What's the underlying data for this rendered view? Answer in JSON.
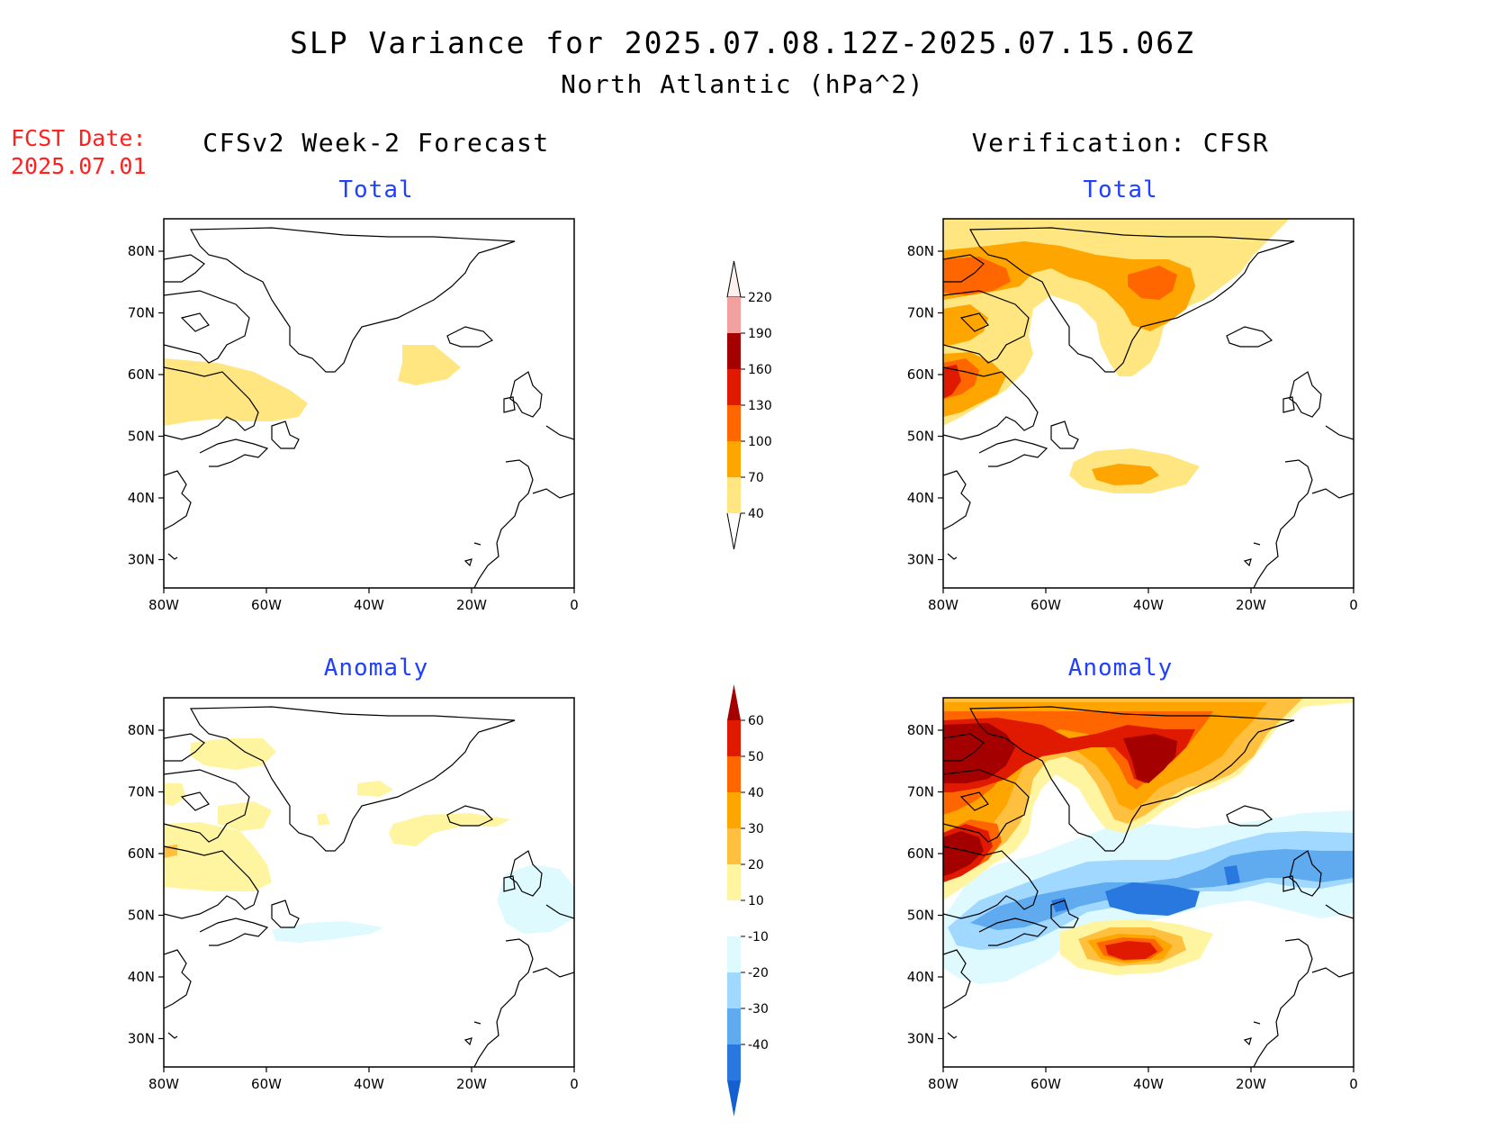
{
  "header": {
    "title": "SLP Variance for 2025.07.08.12Z-2025.07.15.06Z",
    "subtitle": "North Atlantic (hPa^2)",
    "fcst_label": "FCST Date:",
    "fcst_date": "2025.07.01",
    "left_column_title": "CFSv2 Week-2 Forecast",
    "right_column_title": "Verification: CFSR"
  },
  "panels": {
    "top_left_label": "Total",
    "top_right_label": "Total",
    "bottom_left_label": "Anomaly",
    "bottom_right_label": "Anomaly"
  },
  "axes": {
    "lat_labels": [
      "80N",
      "70N",
      "60N",
      "50N",
      "40N",
      "30N"
    ],
    "lon_labels": [
      "80W",
      "60W",
      "40W",
      "20W",
      "0"
    ]
  },
  "colorbar_total": {
    "levels": [
      "220",
      "190",
      "160",
      "130",
      "100",
      "70",
      "40"
    ],
    "colors": [
      "#fff0f0",
      "#f3a0a0",
      "#a50000",
      "#e01a00",
      "#ff6600",
      "#ffa500",
      "#ffe680"
    ]
  },
  "colorbar_anomaly": {
    "levels": [
      "60",
      "50",
      "40",
      "30",
      "20",
      "10",
      "-10",
      "-20",
      "-30",
      "-40"
    ],
    "colors": [
      "#a50000",
      "#e01a00",
      "#ff6600",
      "#ffa500",
      "#ffc040",
      "#fff5a0",
      "#ffffff",
      "#dffaff",
      "#a0d8ff",
      "#60aaf0",
      "#2878e0",
      "#1460d0"
    ]
  }
}
